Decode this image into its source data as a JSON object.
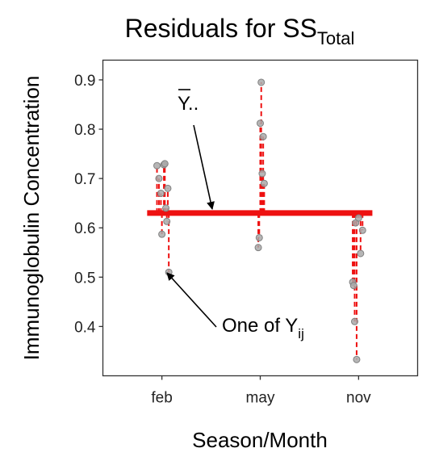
{
  "chart_data": {
    "type": "scatter",
    "title": "Residuals for SS",
    "title_subscript": "Total",
    "xlabel": "Season/Month",
    "ylabel": "Immunoglobulin Concentration",
    "categories": [
      "feb",
      "may",
      "nov"
    ],
    "ylim": [
      0.3,
      0.94
    ],
    "yticks": [
      0.4,
      0.5,
      0.6,
      0.7,
      0.8,
      0.9
    ],
    "ytick_labels": [
      "0.4",
      "0.5",
      "0.6",
      "0.7",
      "0.8",
      "0.9"
    ],
    "grand_mean": 0.63,
    "grid": false,
    "colors": {
      "residual_line": "#ee1111",
      "mean_line": "#ee1111",
      "point_fill": "#a9a9a9",
      "point_stroke": "#808080"
    },
    "series": [
      {
        "category": "feb",
        "points": [
          {
            "x": 0.95,
            "y": 0.726
          },
          {
            "x": 0.97,
            "y": 0.7
          },
          {
            "x": 0.99,
            "y": 0.67
          },
          {
            "x": 1.0,
            "y": 0.587
          },
          {
            "x": 1.02,
            "y": 0.728
          },
          {
            "x": 1.03,
            "y": 0.73
          },
          {
            "x": 1.04,
            "y": 0.64
          },
          {
            "x": 1.05,
            "y": 0.613
          },
          {
            "x": 1.06,
            "y": 0.68
          },
          {
            "x": 1.07,
            "y": 0.51
          }
        ]
      },
      {
        "category": "may",
        "points": [
          {
            "x": 1.98,
            "y": 0.56
          },
          {
            "x": 1.99,
            "y": 0.58
          },
          {
            "x": 2.0,
            "y": 0.812
          },
          {
            "x": 2.01,
            "y": 0.895
          },
          {
            "x": 2.02,
            "y": 0.71
          },
          {
            "x": 2.03,
            "y": 0.785
          },
          {
            "x": 2.04,
            "y": 0.69
          }
        ]
      },
      {
        "category": "nov",
        "points": [
          {
            "x": 2.94,
            "y": 0.49
          },
          {
            "x": 2.95,
            "y": 0.483
          },
          {
            "x": 2.96,
            "y": 0.41
          },
          {
            "x": 2.97,
            "y": 0.61
          },
          {
            "x": 2.98,
            "y": 0.333
          },
          {
            "x": 3.0,
            "y": 0.62
          },
          {
            "x": 3.02,
            "y": 0.548
          },
          {
            "x": 3.04,
            "y": 0.595
          }
        ]
      }
    ],
    "annotations": [
      {
        "label": "Y",
        "label_suffix": "..",
        "overlined": true,
        "target": "grand_mean_line"
      },
      {
        "label": "One of Y",
        "label_subscript": "ij",
        "target": "point",
        "target_x": 1.07,
        "target_y": 0.51
      }
    ]
  }
}
